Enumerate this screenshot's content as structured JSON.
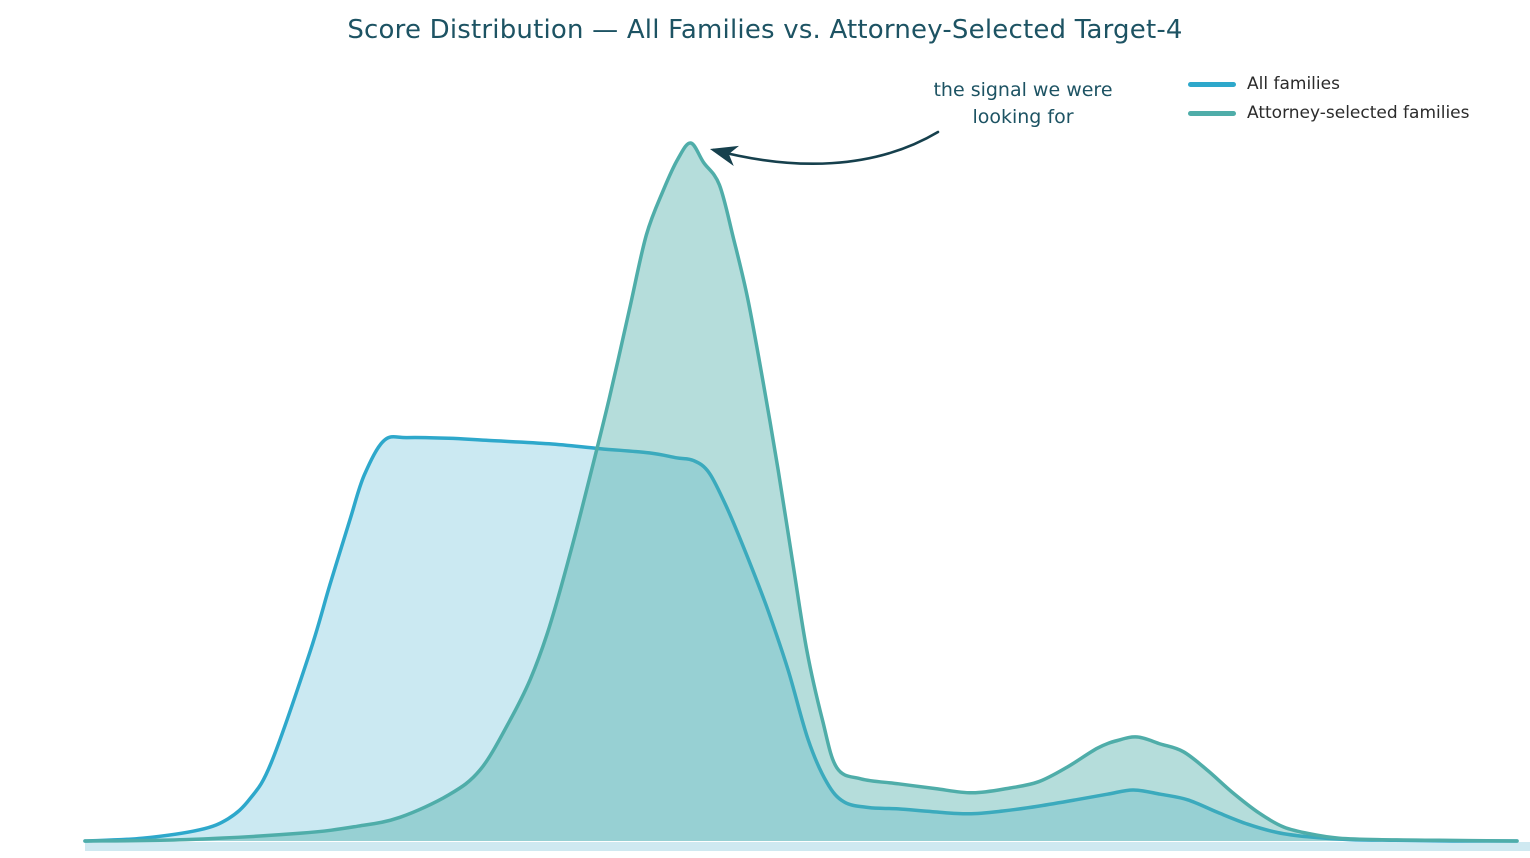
{
  "title": "Score Distribution — All Families vs. Attorney-Selected Target-4",
  "annotation": {
    "text": "the signal we were\nlooking for"
  },
  "colors": {
    "title_text": "#1d5363",
    "annotation_text": "#1d5363",
    "arrow": "#16404d",
    "legend_text": "#2b2b2b",
    "baseline_strip": "#cfe9f1"
  },
  "chart_data": {
    "type": "area",
    "subtype": "kde-density-overlay",
    "title": "Score Distribution — All Families vs. Attorney-Selected Target-4",
    "xlabel": "",
    "ylabel": "",
    "xlim": [
      0,
      100
    ],
    "ylim": [
      0,
      1.05
    ],
    "grid": false,
    "axes_visible": false,
    "legend_position": "top-right",
    "annotation": {
      "text": "the signal we were looking for",
      "points_to": {
        "x": 42.3,
        "y": 1.0
      }
    },
    "series": [
      {
        "name": "All families",
        "color": "#2ea8cb",
        "fill_opacity": 0.25,
        "points": [
          [
            0,
            0
          ],
          [
            4,
            0.004
          ],
          [
            8,
            0.016
          ],
          [
            10,
            0.032
          ],
          [
            11.5,
            0.06
          ],
          [
            13,
            0.112
          ],
          [
            15.7,
            0.27
          ],
          [
            17.1,
            0.367
          ],
          [
            18.5,
            0.46
          ],
          [
            19.5,
            0.524
          ],
          [
            20.9,
            0.574
          ],
          [
            22.5,
            0.578
          ],
          [
            25.4,
            0.577
          ],
          [
            28,
            0.574
          ],
          [
            32.4,
            0.569
          ],
          [
            36,
            0.562
          ],
          [
            39.4,
            0.556
          ],
          [
            41.3,
            0.549
          ],
          [
            42.5,
            0.545
          ],
          [
            43.6,
            0.527
          ],
          [
            44.9,
            0.474
          ],
          [
            46.3,
            0.405
          ],
          [
            47.7,
            0.33
          ],
          [
            49.1,
            0.245
          ],
          [
            50.5,
            0.145
          ],
          [
            51.8,
            0.084
          ],
          [
            53,
            0.056
          ],
          [
            54.7,
            0.048
          ],
          [
            56.8,
            0.046
          ],
          [
            59.2,
            0.042
          ],
          [
            61.7,
            0.039
          ],
          [
            64.1,
            0.043
          ],
          [
            66.6,
            0.05
          ],
          [
            69.2,
            0.059
          ],
          [
            71.4,
            0.067
          ],
          [
            73.2,
            0.073
          ],
          [
            75.1,
            0.067
          ],
          [
            77,
            0.059
          ],
          [
            79.1,
            0.041
          ],
          [
            81.2,
            0.024
          ],
          [
            83.3,
            0.012
          ],
          [
            85.4,
            0.006
          ],
          [
            88.3,
            0.002
          ],
          [
            91.6,
            0.001
          ],
          [
            95.5,
            0
          ],
          [
            100,
            0
          ]
        ]
      },
      {
        "name": "Attorney-selected families",
        "color": "#4fada9",
        "fill_opacity": 0.42,
        "points": [
          [
            0,
            0
          ],
          [
            7,
            0.002
          ],
          [
            15,
            0.011
          ],
          [
            19,
            0.021
          ],
          [
            22,
            0.034
          ],
          [
            25.4,
            0.066
          ],
          [
            27.6,
            0.102
          ],
          [
            29.6,
            0.17
          ],
          [
            31.1,
            0.232
          ],
          [
            32.4,
            0.305
          ],
          [
            33.9,
            0.413
          ],
          [
            35.2,
            0.517
          ],
          [
            36.6,
            0.633
          ],
          [
            38,
            0.76
          ],
          [
            39.2,
            0.868
          ],
          [
            40.4,
            0.933
          ],
          [
            41.4,
            0.977
          ],
          [
            42.3,
            1.0
          ],
          [
            43.2,
            0.972
          ],
          [
            44.3,
            0.94
          ],
          [
            45.3,
            0.862
          ],
          [
            46.3,
            0.775
          ],
          [
            47.4,
            0.652
          ],
          [
            48.4,
            0.532
          ],
          [
            49.4,
            0.402
          ],
          [
            50.4,
            0.274
          ],
          [
            51.5,
            0.173
          ],
          [
            52.5,
            0.105
          ],
          [
            54.2,
            0.089
          ],
          [
            56.8,
            0.082
          ],
          [
            59.4,
            0.075
          ],
          [
            62,
            0.069
          ],
          [
            64.6,
            0.076
          ],
          [
            66.6,
            0.085
          ],
          [
            68.6,
            0.106
          ],
          [
            70.7,
            0.133
          ],
          [
            72.1,
            0.144
          ],
          [
            73.5,
            0.149
          ],
          [
            75.1,
            0.139
          ],
          [
            76.7,
            0.128
          ],
          [
            78.4,
            0.101
          ],
          [
            80.1,
            0.07
          ],
          [
            82,
            0.04
          ],
          [
            83.7,
            0.02
          ],
          [
            85.6,
            0.01
          ],
          [
            87.6,
            0.004
          ],
          [
            90.3,
            0.002
          ],
          [
            94.5,
            0.001
          ],
          [
            100,
            0
          ]
        ]
      }
    ]
  }
}
